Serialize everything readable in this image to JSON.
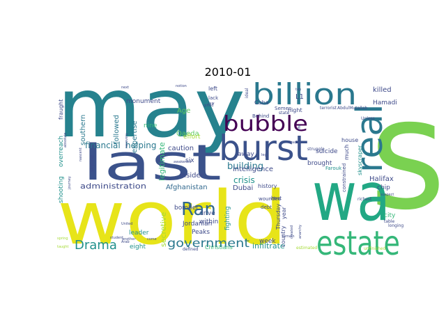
{
  "chart_data": {
    "type": "wordcloud",
    "title": "2010-01",
    "palette": "viridis",
    "background": "#ffffff",
    "words": [
      {
        "text": "s",
        "color": "#7ad151"
      },
      {
        "text": "may",
        "color": "#26828e"
      },
      {
        "text": "world",
        "color": "#e7e419"
      },
      {
        "text": "wa",
        "color": "#22a884"
      },
      {
        "text": "last",
        "color": "#3b528b"
      },
      {
        "text": "billion",
        "color": "#2a788e"
      },
      {
        "text": "estate",
        "color": "#35b779"
      },
      {
        "text": "real",
        "color": "#2a788e"
      },
      {
        "text": "burst",
        "color": "#3b528b"
      },
      {
        "text": "bubble",
        "color": "#440154"
      },
      {
        "text": "Ran",
        "color": "#31688e"
      },
      {
        "text": "Drama",
        "color": "#21918c"
      },
      {
        "text": "government",
        "color": "#2a788e"
      },
      {
        "text": "crisis",
        "color": "#21918c"
      },
      {
        "text": "building",
        "color": "#2a788e"
      },
      {
        "text": "financial",
        "color": "#2a788e"
      },
      {
        "text": "helping",
        "color": "#2a788e"
      },
      {
        "text": "administration",
        "color": "#3e4a89"
      },
      {
        "text": "Afghanistan",
        "color": "#31688e"
      },
      {
        "text": "secretive",
        "color": "#a5db36"
      },
      {
        "text": "legitimate",
        "color": "#35b779"
      },
      {
        "text": "infiltrate",
        "color": "#21918c"
      },
      {
        "text": "intelligence",
        "color": "#3e4a89"
      },
      {
        "text": "insider",
        "color": "#3e4a89"
      },
      {
        "text": "caution",
        "color": "#3e4a89"
      },
      {
        "text": "bomber",
        "color": "#3e4a89"
      },
      {
        "text": "Dubai",
        "color": "#3e4a89"
      },
      {
        "text": "Halifax",
        "color": "#3e4a89"
      },
      {
        "text": "killed",
        "color": "#3e4a89"
      },
      {
        "text": "Hamadi",
        "color": "#3e4a89"
      },
      {
        "text": "followed",
        "color": "#2a788e"
      },
      {
        "text": "southern",
        "color": "#2a788e"
      },
      {
        "text": "expertise",
        "color": "#2a788e"
      },
      {
        "text": "monument",
        "color": "#3e4a89"
      },
      {
        "text": "Age",
        "color": "#5ec962"
      },
      {
        "text": "Qaeda",
        "color": "#5ec962"
      },
      {
        "text": "effort",
        "color": "#a5db36"
      },
      {
        "text": "nine",
        "color": "#35b779"
      },
      {
        "text": "six",
        "color": "#3e4a89"
      },
      {
        "text": "drive",
        "color": "#3e4a89"
      },
      {
        "text": "within",
        "color": "#3e4a89"
      },
      {
        "text": "leader",
        "color": "#21918c"
      },
      {
        "text": "eight",
        "color": "#21918c"
      },
      {
        "text": "Jordanian",
        "color": "#3e4a89"
      },
      {
        "text": "Peaks",
        "color": "#3e4a89"
      },
      {
        "text": "Christians",
        "color": "#35b779"
      },
      {
        "text": "week",
        "color": "#3e4a89"
      },
      {
        "text": "fighting",
        "color": "#21918c"
      },
      {
        "text": "history",
        "color": "#3e4a89"
      },
      {
        "text": "wounded",
        "color": "#3e4a89"
      },
      {
        "text": "Thursday",
        "color": "#3e4a89"
      },
      {
        "text": "country",
        "color": "#3e4a89"
      },
      {
        "text": "year",
        "color": "#3e4a89"
      },
      {
        "text": "much",
        "color": "#3e4a89"
      },
      {
        "text": "constrained",
        "color": "#3e4a89"
      },
      {
        "text": "brought",
        "color": "#3e4a89"
      },
      {
        "text": "suicide",
        "color": "#3e4a89"
      },
      {
        "text": "house",
        "color": "#3e4a89"
      },
      {
        "text": "skyscraper",
        "color": "#21918c"
      },
      {
        "text": "chip",
        "color": "#3e4a89"
      },
      {
        "text": "city",
        "color": "#35b779"
      },
      {
        "text": "shooting",
        "color": "#21918c"
      },
      {
        "text": "overreach",
        "color": "#21918c"
      },
      {
        "text": "fraught",
        "color": "#3e4a89"
      },
      {
        "text": "skyline",
        "color": "#3e4a89"
      },
      {
        "text": "away",
        "color": "#3e4a89"
      },
      {
        "text": "night",
        "color": "#3e4a89"
      },
      {
        "text": "left",
        "color": "#3e4a89"
      },
      {
        "text": "lack",
        "color": "#3e4a89"
      },
      {
        "text": "Cuba",
        "color": "#3e4a89"
      },
      {
        "text": "Behind",
        "color": "#3e4a89"
      },
      {
        "text": "Semen",
        "color": "#3e4a89"
      },
      {
        "text": "struggle",
        "color": "#3e4a89"
      },
      {
        "text": "host",
        "color": "#3e4a89"
      },
      {
        "text": "debt",
        "color": "#3e4a89"
      },
      {
        "text": "state",
        "color": "#3e4a89"
      },
      {
        "text": "AbdulMutallab",
        "color": "#3e4a89"
      },
      {
        "text": "terrorist",
        "color": "#3e4a89"
      },
      {
        "text": "Unless",
        "color": "#3e4a89"
      },
      {
        "text": "Farouk",
        "color": "#21918c"
      },
      {
        "text": "richest",
        "color": "#3e4a89"
      },
      {
        "text": "estimated",
        "color": "#a5db36"
      },
      {
        "text": "unfinished",
        "color": "#a5db36"
      },
      {
        "text": "longing",
        "color": "#3e4a89"
      },
      {
        "text": "table",
        "color": "#3e4a89"
      },
      {
        "text": "remain",
        "color": "#3e4a89"
      },
      {
        "text": "defined",
        "color": "#3e4a89"
      },
      {
        "text": "come",
        "color": "#3e4a89"
      },
      {
        "text": "Arab",
        "color": "#3e4a89"
      },
      {
        "text": "another",
        "color": "#3e4a89"
      },
      {
        "text": "United",
        "color": "#3e4a89"
      },
      {
        "text": "student",
        "color": "#3e4a89"
      },
      {
        "text": "journey",
        "color": "#3e4a89"
      },
      {
        "text": "nascent",
        "color": "#3e4a89"
      },
      {
        "text": "recovery",
        "color": "#3e4a89"
      },
      {
        "text": "awakened",
        "color": "#3e4a89"
      },
      {
        "text": "notion",
        "color": "#3e4a89"
      },
      {
        "text": "gifted",
        "color": "#3e4a89"
      },
      {
        "text": "law",
        "color": "#3e4a89"
      },
      {
        "text": "next",
        "color": "#3e4a89"
      },
      {
        "text": "ideal",
        "color": "#3e4a89"
      },
      {
        "text": "top",
        "color": "#3e4a89"
      },
      {
        "text": "life",
        "color": "#3e4a89"
      },
      {
        "text": "track",
        "color": "#3e4a89"
      },
      {
        "text": "leg",
        "color": "#3e4a89"
      },
      {
        "text": "created",
        "color": "#3e4a89"
      },
      {
        "text": "anarchy",
        "color": "#3e4a89"
      },
      {
        "text": "suspect",
        "color": "#3e4a89"
      },
      {
        "text": "L1",
        "color": "#3e4a89"
      },
      {
        "text": "taught",
        "color": "#a5db36"
      },
      {
        "text": "spring",
        "color": "#a5db36"
      },
      {
        "text": "absolute",
        "color": "#3e4a89"
      }
    ]
  }
}
